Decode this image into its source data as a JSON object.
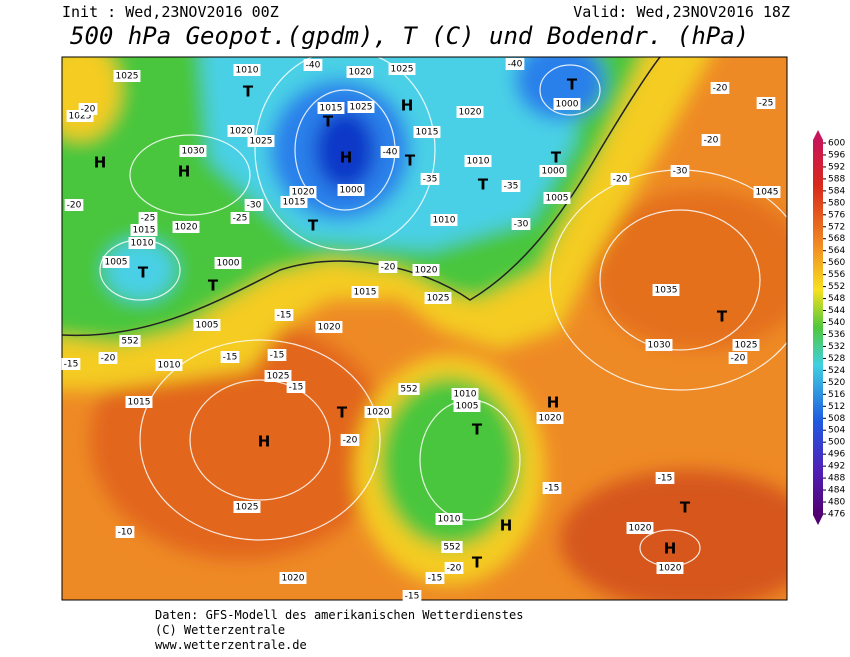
{
  "header": {
    "init": "Init : Wed,23NOV2016 00Z",
    "valid": "Valid: Wed,23NOV2016 18Z",
    "title": "500 hPa Geopot.(gpdm), T (C) und Bodendr. (hPa)"
  },
  "map": {
    "labels": [
      "1025",
      "1010",
      "1020",
      "1025",
      "-40",
      "-40",
      "T",
      "T",
      "1000",
      "1025",
      "-20",
      "1015",
      "1025",
      "H",
      "1020",
      "1020",
      "1025",
      "1030",
      "1015",
      "H",
      "H",
      "H",
      "T",
      "T",
      "-40",
      "1010",
      "T",
      "1000",
      "T",
      "-35",
      "-35",
      "1005",
      "1020",
      "1015",
      "1000",
      "-25",
      "-30",
      "T",
      "1010",
      "-30",
      "1020",
      "1015",
      "1010",
      "-25",
      "-20",
      "1005",
      "T",
      "1000",
      "T",
      "1020",
      "1015",
      "-20",
      "1045",
      "-20",
      "-30",
      "-20",
      "-25",
      "-20",
      "1035",
      "T",
      "1030",
      "1025",
      "-20",
      "1020",
      "1005",
      "-15",
      "552",
      "-20",
      "-15",
      "-15",
      "-15",
      "1010",
      "1025",
      "-15",
      "1015",
      "T",
      "1020",
      "552",
      "1010",
      "1005",
      "H",
      "-20",
      "T",
      "H",
      "1020",
      "-15",
      "-15",
      "T",
      "1020",
      "H",
      "1020",
      "1025",
      "-10",
      "1020",
      "1010",
      "H",
      "552",
      "T",
      "-15",
      "-15",
      "-20",
      "1025"
    ]
  },
  "colorbar": {
    "ticks": [
      600,
      596,
      592,
      588,
      584,
      580,
      576,
      572,
      568,
      564,
      560,
      556,
      552,
      548,
      544,
      540,
      536,
      532,
      528,
      524,
      520,
      516,
      512,
      508,
      504,
      500,
      496,
      492,
      488,
      484,
      480,
      476
    ]
  },
  "footer": {
    "lines": [
      "Daten: GFS-Modell des amerikanischen Wetterdienstes",
      "(C) Wetterzentrale",
      "www.wetterzentrale.de"
    ]
  }
}
